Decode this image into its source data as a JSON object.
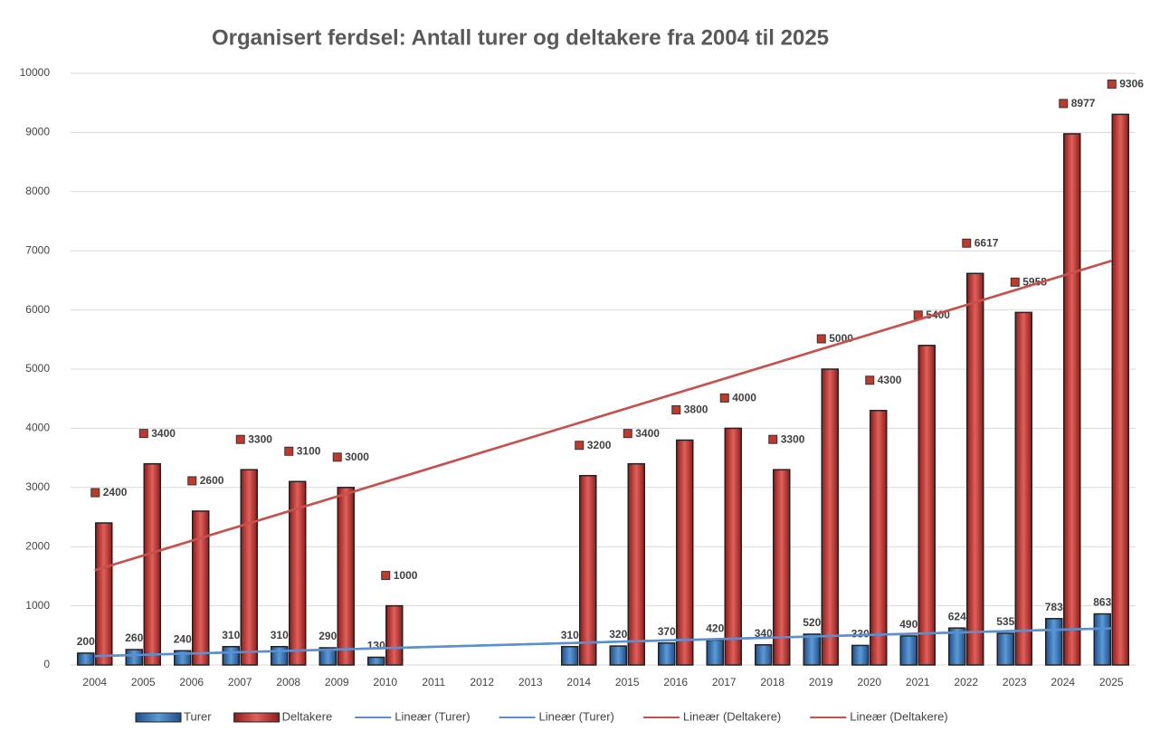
{
  "chart_data": {
    "type": "bar",
    "title": "Organisert ferdsel: Antall turer og deltakere fra 2004 til 2025",
    "categories": [
      "2004",
      "2005",
      "2006",
      "2007",
      "2008",
      "2009",
      "2010",
      "2011",
      "2012",
      "2013",
      "2014",
      "2015",
      "2016",
      "2017",
      "2018",
      "2019",
      "2020",
      "2021",
      "2022",
      "2023",
      "2024",
      "2025"
    ],
    "series": [
      {
        "name": "Turer",
        "color": "#2e75b6",
        "values": [
          200,
          260,
          240,
          310,
          310,
          290,
          130,
          null,
          null,
          null,
          310,
          320,
          370,
          420,
          340,
          520,
          330,
          490,
          624,
          535,
          783,
          863
        ]
      },
      {
        "name": "Deltakere",
        "color": "#c0392b",
        "values": [
          2400,
          3400,
          2600,
          3300,
          3100,
          3000,
          1000,
          null,
          null,
          null,
          3200,
          3400,
          3800,
          4000,
          3300,
          5000,
          4300,
          5400,
          6617,
          5958,
          8977,
          9306
        ]
      }
    ],
    "trendlines": [
      {
        "name": "Lineær (Turer)",
        "color": "#5b8fd0",
        "x": [
          "2004",
          "2025"
        ],
        "values": [
          150,
          620
        ]
      },
      {
        "name": "Lineær (Turer)",
        "color": "#5b8fd0",
        "x": [
          "2004",
          "2025"
        ],
        "values": [
          150,
          620
        ]
      },
      {
        "name": "Lineær (Deltakere)",
        "color": "#c9504b",
        "x": [
          "2004",
          "2025"
        ],
        "values": [
          1600,
          6830
        ]
      },
      {
        "name": "Lineær (Deltakere)",
        "color": "#c9504b",
        "x": [
          "2004",
          "2025"
        ],
        "values": [
          1600,
          6830
        ]
      }
    ],
    "ylim": [
      0,
      10000
    ],
    "yticks": [
      0,
      1000,
      2000,
      3000,
      4000,
      5000,
      6000,
      7000,
      8000,
      9000,
      10000
    ],
    "grid": true
  }
}
